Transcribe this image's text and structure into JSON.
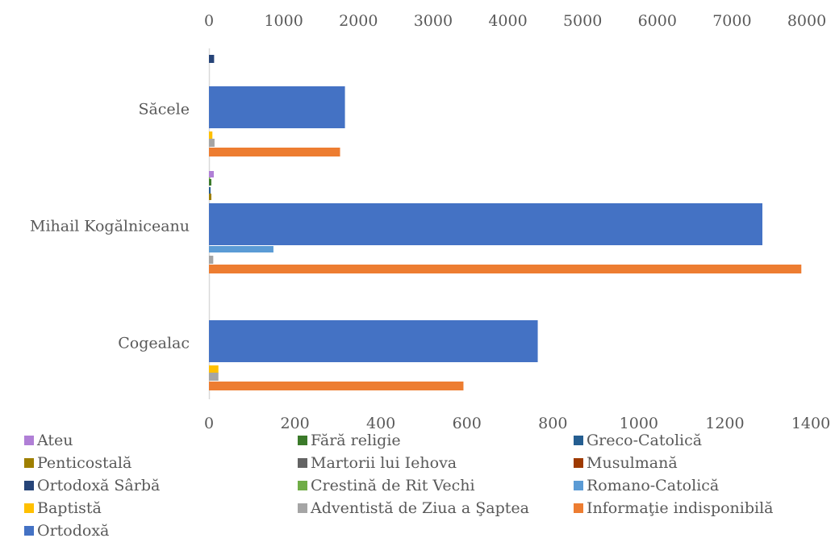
{
  "chart_data": {
    "type": "bar",
    "orientation": "horizontal",
    "grid": false,
    "legend_placement": "bottom",
    "categories": [
      "Săcele",
      "Mihail Kogălniceanu",
      "Cogealac"
    ],
    "x_top_axis": {
      "ticks": [
        "0",
        "1000",
        "2000",
        "3000",
        "4000",
        "5000",
        "6000",
        "7000",
        "8000"
      ],
      "range": [
        0,
        8000
      ]
    },
    "x_bottom_axis": {
      "ticks": [
        "0",
        "200",
        "400",
        "600",
        "800",
        "1000",
        "1200",
        "1400"
      ],
      "range": [
        0,
        1400
      ]
    },
    "series": [
      {
        "name": "Ateu",
        "color": "#B07FD6",
        "axis": "bottom",
        "values": [
          0,
          0,
          0
        ]
      },
      {
        "name": "Fără religie",
        "color": "#3B7A2A",
        "axis": "bottom",
        "values": [
          0,
          0,
          0
        ]
      },
      {
        "name": "Greco-Catolică",
        "color": "#255E91",
        "axis": "bottom",
        "values": [
          0,
          0,
          0
        ]
      },
      {
        "name": "Penticostală",
        "color": "#9E7F00",
        "axis": "bottom",
        "values": [
          0,
          0,
          0
        ]
      },
      {
        "name": "Martorii lui Iehova",
        "color": "#636363",
        "axis": "bottom",
        "values": [
          0,
          0,
          0
        ]
      },
      {
        "name": "Musulmană",
        "color": "#9E3A00",
        "axis": "bottom",
        "values": [
          0,
          0,
          0
        ]
      },
      {
        "name": "Ortodoxă Sârbă",
        "color": "#264478",
        "axis": "bottom",
        "values": [
          12,
          0,
          0
        ]
      },
      {
        "name": "Crestină de Rit Vechi",
        "color": "#70AD47",
        "axis": "bottom",
        "values": [
          0,
          3,
          0
        ]
      },
      {
        "name": "Romano-Catolică",
        "color": "#5B9BD5",
        "axis": "bottom",
        "values": [
          0,
          150,
          0
        ]
      },
      {
        "name": "Baptistă",
        "color": "#FFC000",
        "axis": "bottom",
        "values": [
          8,
          0,
          22
        ]
      },
      {
        "name": "Adventistă de Ziua a Şaptea",
        "color": "#A5A5A5",
        "axis": "bottom",
        "values": [
          13,
          10,
          22
        ]
      },
      {
        "name": "Informaţie indisponibilă",
        "color": "#ED7D31",
        "axis": "bottom",
        "values": [
          305,
          1378,
          592
        ]
      },
      {
        "name": "Ortodoxă",
        "color": "#4472C4",
        "axis": "top",
        "values": [
          1820,
          8000,
          4400
        ]
      }
    ]
  }
}
